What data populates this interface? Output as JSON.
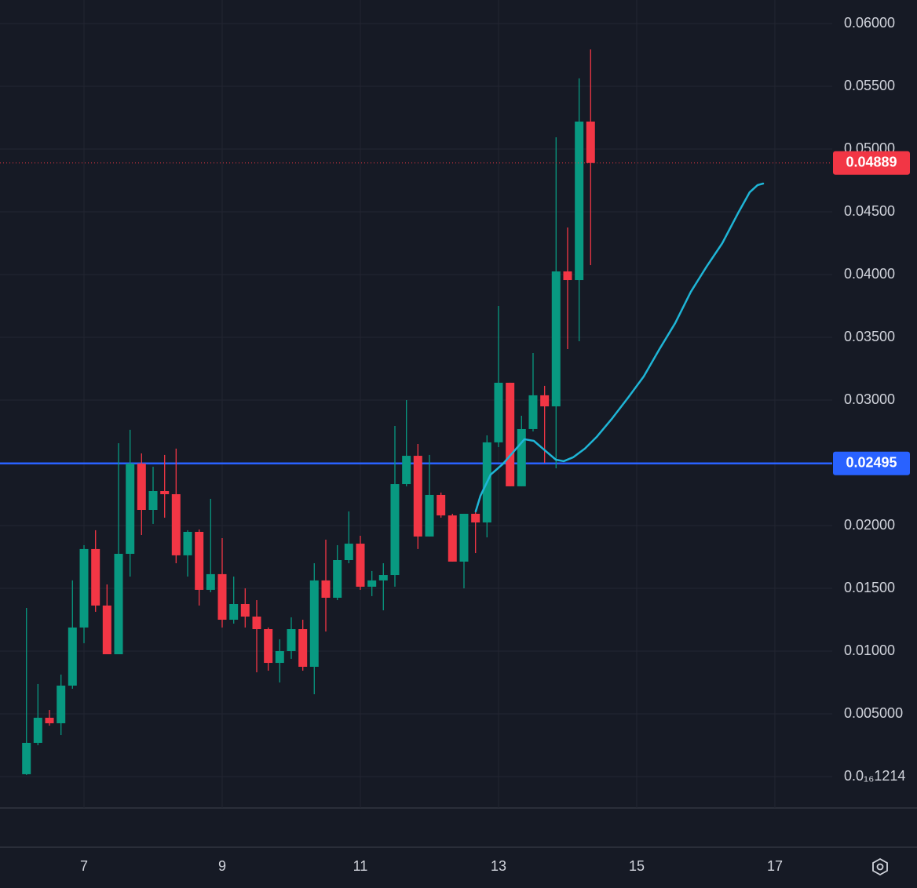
{
  "chart_data": {
    "type": "candlestick",
    "up_color": "#089981",
    "down_color": "#f23645",
    "grid": true,
    "xlim": [
      5.784,
      17.83
    ],
    "xticks": [
      7,
      9,
      11,
      13,
      15,
      17
    ],
    "ylim": [
      -0.0025,
      0.061875
    ],
    "yticks": [
      {
        "value": 1.214e-17,
        "label": "0.0₁₆1214"
      },
      {
        "value": 0.005,
        "label": "0.005000"
      },
      {
        "value": 0.01,
        "label": "0.01000"
      },
      {
        "value": 0.015,
        "label": "0.01500"
      },
      {
        "value": 0.02,
        "label": "0.02000"
      },
      {
        "value": 0.025,
        "label": "0.02500"
      },
      {
        "value": 0.03,
        "label": "0.03000"
      },
      {
        "value": 0.035,
        "label": "0.03500"
      },
      {
        "value": 0.04,
        "label": "0.04000"
      },
      {
        "value": 0.045,
        "label": "0.04500"
      },
      {
        "value": 0.05,
        "label": "0.05000"
      },
      {
        "value": 0.055,
        "label": "0.05500"
      },
      {
        "value": 0.06,
        "label": "0.06000"
      }
    ],
    "x": [
      6.167,
      6.333,
      6.5,
      6.667,
      6.833,
      7,
      7.167,
      7.333,
      7.5,
      7.667,
      7.833,
      8,
      8.167,
      8.333,
      8.5,
      8.667,
      8.833,
      9,
      9.167,
      9.333,
      9.5,
      9.667,
      9.833,
      10,
      10.167,
      10.333,
      10.5,
      10.667,
      10.833,
      11,
      11.167,
      11.333,
      11.5,
      11.667,
      11.833,
      12,
      12.167,
      12.333,
      12.5,
      12.667,
      12.833,
      13,
      13.167,
      13.333,
      13.5,
      13.667,
      13.833,
      14,
      14.167,
      14.333
    ],
    "open": [
      0.00019,
      0.00269,
      0.00469,
      0.00425,
      0.00725,
      0.01188,
      0.01813,
      0.01363,
      0.00975,
      0.01775,
      0.02494,
      0.02125,
      0.02275,
      0.0225,
      0.01763,
      0.0195,
      0.01488,
      0.01613,
      0.0125,
      0.01375,
      0.01275,
      0.01175,
      0.00906,
      0.01,
      0.01175,
      0.00875,
      0.01563,
      0.01425,
      0.01725,
      0.01856,
      0.01513,
      0.01563,
      0.01606,
      0.02331,
      0.02556,
      0.01913,
      0.02244,
      0.02081,
      0.01713,
      0.02094,
      0.02025,
      0.02663,
      0.03138,
      0.02313,
      0.02769,
      0.03038,
      0.0295,
      0.04025,
      0.03956,
      0.05219
    ],
    "high": [
      0.01344,
      0.00738,
      0.00531,
      0.00813,
      0.01563,
      0.01844,
      0.01963,
      0.01531,
      0.02656,
      0.02763,
      0.02575,
      0.02469,
      0.02563,
      0.02613,
      0.01963,
      0.01969,
      0.02213,
      0.019,
      0.01594,
      0.015,
      0.01406,
      0.01188,
      0.01094,
      0.01269,
      0.0125,
      0.017,
      0.01888,
      0.01844,
      0.02113,
      0.01919,
      0.01638,
      0.017,
      0.02794,
      0.03,
      0.0265,
      0.02563,
      0.02263,
      0.02094,
      0.02094,
      0.02125,
      0.02719,
      0.0375,
      0.03138,
      0.02875,
      0.03375,
      0.03113,
      0.05094,
      0.04375,
      0.05563,
      0.05794
    ],
    "low": [
      0.00013,
      0.0025,
      0.00406,
      0.00331,
      0.007,
      0.01063,
      0.01313,
      0.00975,
      0.00975,
      0.01594,
      0.01925,
      0.02013,
      0.02063,
      0.017,
      0.01594,
      0.01363,
      0.01469,
      0.01188,
      0.01219,
      0.01188,
      0.00831,
      0.00844,
      0.0075,
      0.00938,
      0.00844,
      0.00656,
      0.01156,
      0.01406,
      0.017,
      0.01488,
      0.01438,
      0.01325,
      0.01513,
      0.02313,
      0.01813,
      0.01913,
      0.02063,
      0.01713,
      0.015,
      0.01781,
      0.01906,
      0.02625,
      0.02313,
      0.02313,
      0.0275,
      0.025,
      0.02456,
      0.03406,
      0.03469,
      0.04075
    ],
    "close": [
      0.00269,
      0.00469,
      0.00425,
      0.00725,
      0.01188,
      0.01813,
      0.01363,
      0.00975,
      0.01775,
      0.02494,
      0.02125,
      0.02275,
      0.0225,
      0.01763,
      0.0195,
      0.01488,
      0.01613,
      0.0125,
      0.01375,
      0.01275,
      0.01175,
      0.00906,
      0.01,
      0.01175,
      0.00875,
      0.01563,
      0.01425,
      0.01725,
      0.01856,
      0.01513,
      0.01563,
      0.01606,
      0.02331,
      0.02556,
      0.01913,
      0.02244,
      0.02081,
      0.01713,
      0.02094,
      0.02025,
      0.02663,
      0.03138,
      0.02313,
      0.02769,
      0.03038,
      0.0295,
      0.04025,
      0.03956,
      0.05219,
      0.04889
    ],
    "lines": [
      {
        "color": "#1fb5d6",
        "x": [
          12.67,
          12.739,
          12.886,
          13.057,
          13.227,
          13.375,
          13.511,
          13.682,
          13.83,
          13.943,
          14.08,
          14.25,
          14.42,
          14.648,
          14.875,
          15.102,
          15.33,
          15.557,
          15.784,
          16.011,
          16.239,
          16.466,
          16.636,
          16.75,
          16.83
        ],
        "values": [
          0.02113,
          0.02238,
          0.02406,
          0.02488,
          0.02594,
          0.02688,
          0.02675,
          0.02594,
          0.02525,
          0.02513,
          0.02544,
          0.02613,
          0.02706,
          0.02856,
          0.03019,
          0.03188,
          0.03406,
          0.03613,
          0.03863,
          0.04063,
          0.0425,
          0.04488,
          0.04656,
          0.04713,
          0.04725
        ]
      }
    ],
    "hlines": [
      {
        "value": 0.02495,
        "color": "#2962ff"
      }
    ]
  }
}
